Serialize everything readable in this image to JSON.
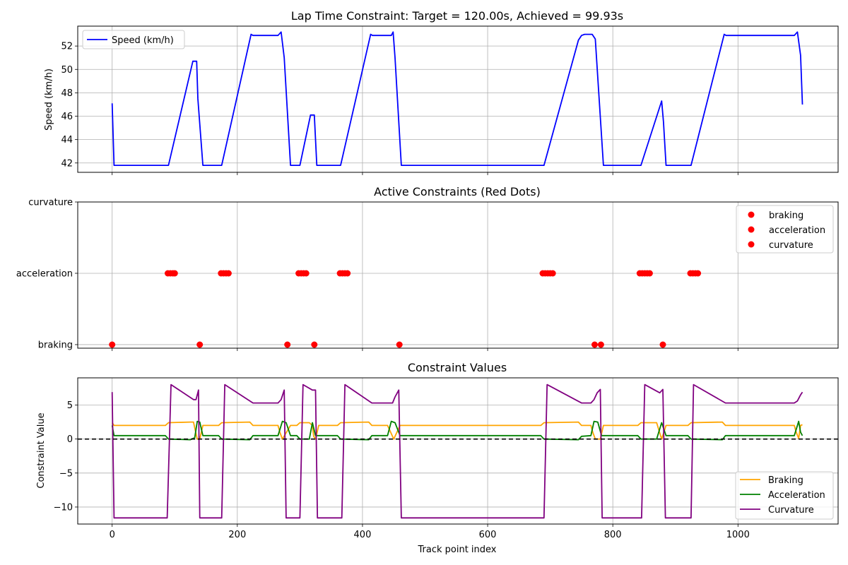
{
  "chart_data": [
    {
      "type": "line",
      "title": "Lap Time Constraint: Target = 120.00s, Achieved = 99.93s",
      "xlabel": "",
      "ylabel": "Speed (km/h)",
      "xlim": [
        -55,
        1160
      ],
      "ylim": [
        41.2,
        53.7
      ],
      "xticks": [
        0,
        200,
        400,
        600,
        800,
        1000
      ],
      "yticks": [
        42,
        44,
        46,
        48,
        50,
        52
      ],
      "grid": true,
      "legend_position": "upper left",
      "series": [
        {
          "name": "Speed (km/h)",
          "color": "#0000ff",
          "points": [
            [
              0,
              47.1
            ],
            [
              3,
              41.8
            ],
            [
              90,
              41.8
            ],
            [
              129,
              50.7
            ],
            [
              135,
              50.7
            ],
            [
              137,
              47.5
            ],
            [
              145,
              41.8
            ],
            [
              175,
              41.8
            ],
            [
              222,
              53.0
            ],
            [
              225,
              52.9
            ],
            [
              265,
              52.9
            ],
            [
              270,
              53.2
            ],
            [
              275,
              51.0
            ],
            [
              285,
              41.8
            ],
            [
              300,
              41.8
            ],
            [
              317,
              46.1
            ],
            [
              323,
              46.1
            ],
            [
              327,
              41.8
            ],
            [
              365,
              41.8
            ],
            [
              413,
              53.0
            ],
            [
              416,
              52.9
            ],
            [
              446,
              52.9
            ],
            [
              449,
              53.2
            ],
            [
              452,
              51.0
            ],
            [
              462,
              41.8
            ],
            [
              690,
              41.8
            ],
            [
              745,
              52.5
            ],
            [
              750,
              52.9
            ],
            [
              755,
              53.0
            ],
            [
              767,
              53.0
            ],
            [
              772,
              52.6
            ],
            [
              785,
              41.8
            ],
            [
              845,
              41.8
            ],
            [
              878,
              47.3
            ],
            [
              881,
              45.5
            ],
            [
              885,
              41.8
            ],
            [
              925,
              41.8
            ],
            [
              978,
              53.0
            ],
            [
              981,
              52.9
            ],
            [
              1090,
              52.9
            ],
            [
              1095,
              53.2
            ],
            [
              1100,
              51.2
            ],
            [
              1103,
              47.0
            ]
          ]
        }
      ]
    },
    {
      "type": "scatter",
      "title": "Active Constraints (Red Dots)",
      "xlabel": "",
      "ylabel": "",
      "xlim": [
        -55,
        1160
      ],
      "ylim": [
        -0.05,
        2.0
      ],
      "xticks": [
        0,
        200,
        400,
        600,
        800,
        1000
      ],
      "categories": [
        "braking",
        "acceleration",
        "curvature"
      ],
      "grid": true,
      "legend_position": "upper right",
      "series": [
        {
          "name": "braking",
          "color": "#ff0000",
          "level": 0,
          "x": [
            0,
            140,
            280,
            323,
            459,
            771,
            781,
            880
          ]
        },
        {
          "name": "acceleration",
          "color": "#ff0000",
          "level": 1,
          "x": [
            89,
            93,
            97,
            100,
            174,
            178,
            182,
            186,
            298,
            302,
            306,
            310,
            364,
            368,
            372,
            376,
            688,
            692,
            696,
            700,
            704,
            843,
            847,
            851,
            855,
            859,
            924,
            928,
            932,
            936
          ]
        },
        {
          "name": "curvature",
          "color": "#ff0000",
          "level": 2,
          "x": []
        }
      ]
    },
    {
      "type": "line",
      "title": "Constraint Values",
      "xlabel": "Track point index",
      "ylabel": "Constraint Value",
      "xlim": [
        -55,
        1160
      ],
      "ylim": [
        -12.5,
        9.0
      ],
      "xticks": [
        0,
        200,
        400,
        600,
        800,
        1000
      ],
      "yticks": [
        -10,
        -5,
        0,
        5
      ],
      "zero_line": true,
      "grid": true,
      "legend_position": "lower right",
      "series": [
        {
          "name": "Braking",
          "color": "#ffa500",
          "points": [
            [
              0,
              2.4
            ],
            [
              3,
              2.0
            ],
            [
              85,
              2.0
            ],
            [
              90,
              2.4
            ],
            [
              125,
              2.5
            ],
            [
              130,
              2.5
            ],
            [
              133,
              1.2
            ],
            [
              136,
              0.0
            ],
            [
              140,
              0.0
            ],
            [
              145,
              2.0
            ],
            [
              170,
              2.0
            ],
            [
              175,
              2.4
            ],
            [
              220,
              2.5
            ],
            [
              225,
              2.0
            ],
            [
              265,
              2.0
            ],
            [
              268,
              1.0
            ],
            [
              272,
              0.0
            ],
            [
              285,
              2.0
            ],
            [
              295,
              2.0
            ],
            [
              300,
              2.4
            ],
            [
              315,
              2.4
            ],
            [
              320,
              2.0
            ],
            [
              322,
              0.4
            ],
            [
              325,
              0.0
            ],
            [
              330,
              2.0
            ],
            [
              360,
              2.0
            ],
            [
              365,
              2.4
            ],
            [
              410,
              2.5
            ],
            [
              415,
              2.0
            ],
            [
              440,
              2.0
            ],
            [
              445,
              1.0
            ],
            [
              450,
              0.0
            ],
            [
              460,
              2.0
            ],
            [
              685,
              2.0
            ],
            [
              690,
              2.4
            ],
            [
              745,
              2.5
            ],
            [
              750,
              2.0
            ],
            [
              765,
              2.0
            ],
            [
              768,
              1.0
            ],
            [
              772,
              0.0
            ],
            [
              780,
              0.0
            ],
            [
              785,
              2.0
            ],
            [
              840,
              2.0
            ],
            [
              845,
              2.4
            ],
            [
              870,
              2.4
            ],
            [
              874,
              1.2
            ],
            [
              878,
              0.0
            ],
            [
              885,
              2.0
            ],
            [
              920,
              2.0
            ],
            [
              925,
              2.4
            ],
            [
              975,
              2.5
            ],
            [
              980,
              2.0
            ],
            [
              1090,
              2.0
            ],
            [
              1093,
              1.0
            ],
            [
              1097,
              0.1
            ],
            [
              1100,
              2.0
            ],
            [
              1103,
              2.1
            ]
          ]
        },
        {
          "name": "Acceleration",
          "color": "#008000",
          "points": [
            [
              0,
              2.0
            ],
            [
              3,
              0.5
            ],
            [
              85,
              0.5
            ],
            [
              90,
              0.0
            ],
            [
              125,
              -0.1
            ],
            [
              132,
              0.2
            ],
            [
              136,
              2.6
            ],
            [
              140,
              2.5
            ],
            [
              145,
              0.5
            ],
            [
              170,
              0.5
            ],
            [
              175,
              0.0
            ],
            [
              220,
              -0.1
            ],
            [
              225,
              0.5
            ],
            [
              265,
              0.5
            ],
            [
              272,
              2.6
            ],
            [
              278,
              2.4
            ],
            [
              285,
              0.5
            ],
            [
              295,
              0.5
            ],
            [
              300,
              0.0
            ],
            [
              315,
              0.0
            ],
            [
              320,
              2.4
            ],
            [
              325,
              0.5
            ],
            [
              360,
              0.5
            ],
            [
              365,
              0.0
            ],
            [
              410,
              -0.1
            ],
            [
              415,
              0.5
            ],
            [
              440,
              0.5
            ],
            [
              446,
              2.6
            ],
            [
              452,
              2.4
            ],
            [
              460,
              0.5
            ],
            [
              685,
              0.5
            ],
            [
              690,
              0.0
            ],
            [
              745,
              -0.1
            ],
            [
              750,
              0.4
            ],
            [
              765,
              0.5
            ],
            [
              770,
              2.6
            ],
            [
              776,
              2.5
            ],
            [
              782,
              0.5
            ],
            [
              840,
              0.5
            ],
            [
              845,
              0.0
            ],
            [
              870,
              0.0
            ],
            [
              875,
              1.5
            ],
            [
              878,
              2.4
            ],
            [
              885,
              0.5
            ],
            [
              920,
              0.5
            ],
            [
              925,
              0.0
            ],
            [
              975,
              -0.1
            ],
            [
              980,
              0.5
            ],
            [
              1090,
              0.5
            ],
            [
              1097,
              2.6
            ],
            [
              1100,
              1.0
            ],
            [
              1103,
              0.5
            ]
          ]
        },
        {
          "name": "Curvature",
          "color": "#800080",
          "points": [
            [
              0,
              6.9
            ],
            [
              3,
              -11.6
            ],
            [
              88,
              -11.6
            ],
            [
              94,
              8.0
            ],
            [
              130,
              5.8
            ],
            [
              134,
              5.8
            ],
            [
              138,
              7.2
            ],
            [
              140,
              -11.6
            ],
            [
              175,
              -11.6
            ],
            [
              180,
              8.0
            ],
            [
              225,
              5.3
            ],
            [
              265,
              5.3
            ],
            [
              270,
              5.8
            ],
            [
              275,
              7.2
            ],
            [
              278,
              -11.6
            ],
            [
              300,
              -11.6
            ],
            [
              305,
              8.0
            ],
            [
              320,
              7.2
            ],
            [
              325,
              7.2
            ],
            [
              328,
              -11.6
            ],
            [
              367,
              -11.6
            ],
            [
              372,
              8.0
            ],
            [
              415,
              5.3
            ],
            [
              448,
              5.3
            ],
            [
              452,
              6.2
            ],
            [
              458,
              7.2
            ],
            [
              462,
              -11.6
            ],
            [
              690,
              -11.6
            ],
            [
              695,
              8.0
            ],
            [
              750,
              5.3
            ],
            [
              765,
              5.3
            ],
            [
              770,
              5.8
            ],
            [
              775,
              6.8
            ],
            [
              780,
              7.3
            ],
            [
              783,
              -11.6
            ],
            [
              846,
              -11.6
            ],
            [
              851,
              8.0
            ],
            [
              875,
              6.8
            ],
            [
              880,
              7.3
            ],
            [
              884,
              -11.6
            ],
            [
              925,
              -11.6
            ],
            [
              929,
              8.0
            ],
            [
              980,
              5.3
            ],
            [
              1090,
              5.3
            ],
            [
              1095,
              5.6
            ],
            [
              1100,
              6.5
            ],
            [
              1103,
              6.9
            ]
          ]
        }
      ]
    }
  ]
}
